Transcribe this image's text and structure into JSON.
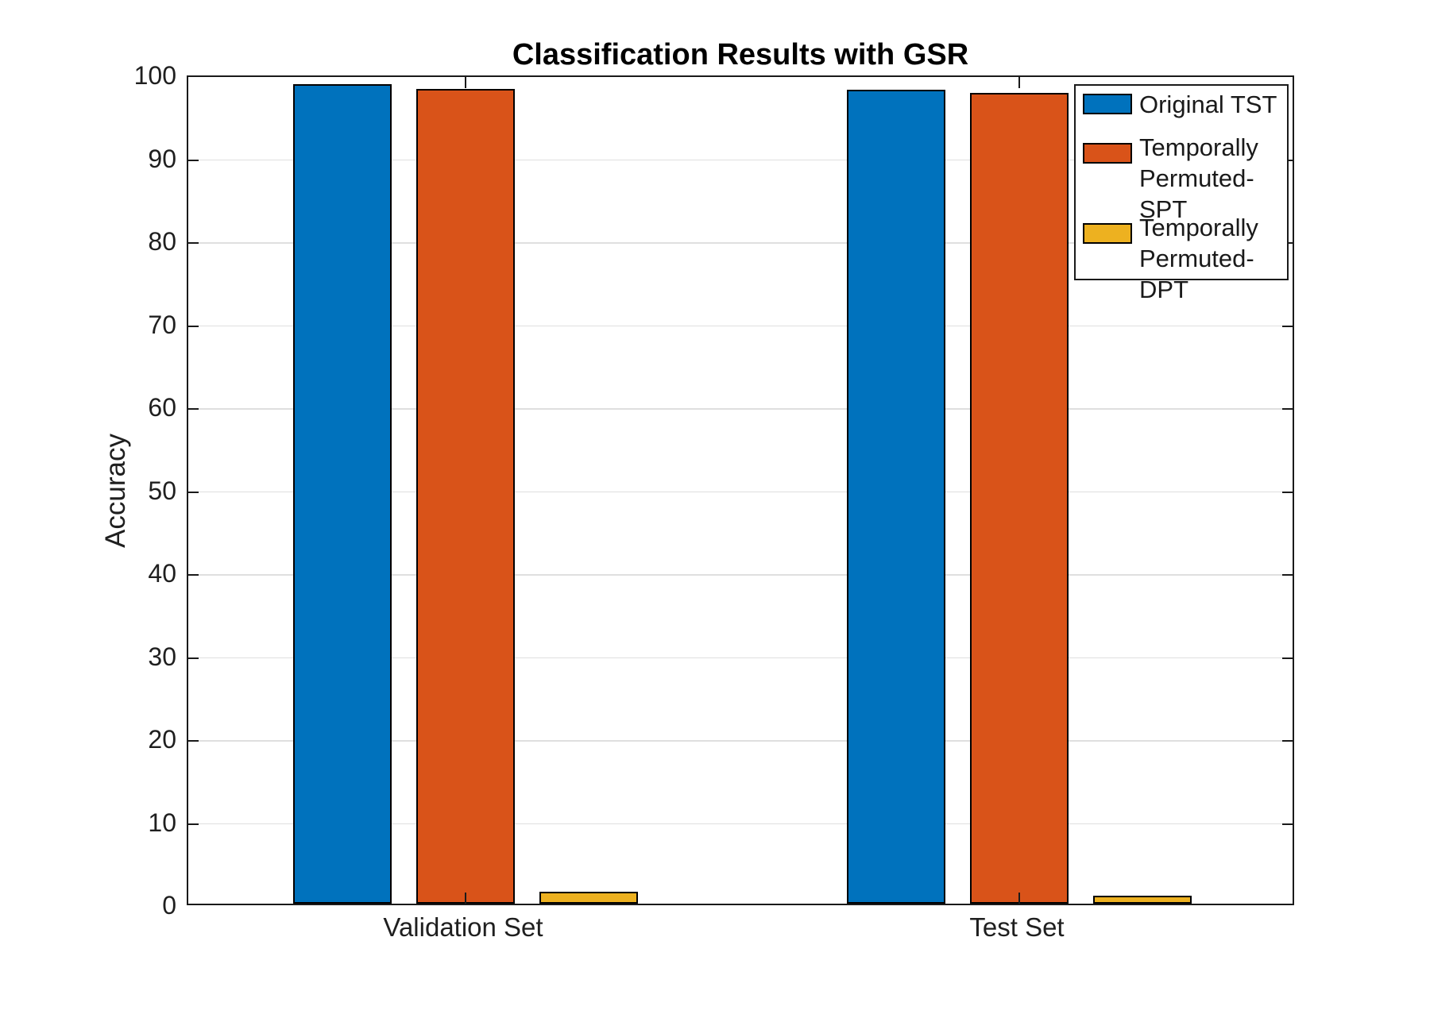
{
  "chart_data": {
    "type": "bar",
    "title": "Classification Results with GSR",
    "xlabel": "",
    "ylabel": "Accuracy",
    "categories": [
      "Validation Set",
      "Test Set"
    ],
    "series": [
      {
        "name": "Original TST",
        "legend_lines": [
          "Original TST"
        ],
        "color": "#0072BD",
        "values": [
          98.8,
          98.1
        ]
      },
      {
        "name": "Temporally Permuted-SPT",
        "legend_lines": [
          "Temporally",
          "Permuted-SPT"
        ],
        "color": "#D95319",
        "values": [
          98.2,
          97.7
        ]
      },
      {
        "name": "Temporally Permuted-DPT",
        "legend_lines": [
          "Temporally",
          "Permuted-DPT"
        ],
        "color": "#EDB120",
        "values": [
          1.4,
          1.0
        ]
      }
    ],
    "ylim": [
      0,
      100
    ],
    "yticks": [
      0,
      10,
      20,
      30,
      40,
      50,
      60,
      70,
      80,
      90,
      100
    ],
    "grid": "horizontal-only",
    "legend_position": "northeast",
    "bar_edge_color": "#000000"
  },
  "colors": {
    "background": "#ffffff",
    "axis": "#1a1a1a",
    "grid": "#dfdfdf",
    "text": "#1f1f1f",
    "title": "#000000"
  }
}
